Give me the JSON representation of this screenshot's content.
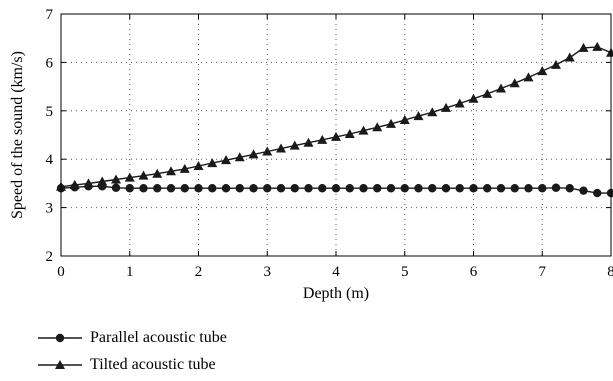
{
  "chart_data": {
    "type": "line",
    "xlabel": "Depth (m)",
    "ylabel": "Speed of the sound (km/s)",
    "xlim": [
      0,
      8
    ],
    "ylim": [
      2,
      7
    ],
    "xticks": [
      "0",
      "1",
      "2",
      "3",
      "4",
      "5",
      "6",
      "7",
      "8"
    ],
    "yticks": [
      "2",
      "3",
      "4",
      "5",
      "6",
      "7"
    ],
    "grid": "dotted",
    "legend_position": "bottom-left, below plot",
    "series": [
      {
        "name": "Parallel acoustic tube",
        "marker": "circle",
        "color": "#1a1a1a",
        "x": [
          0,
          0.2,
          0.4,
          0.6,
          0.8,
          1.0,
          1.2,
          1.4,
          1.6,
          1.8,
          2.0,
          2.2,
          2.4,
          2.6,
          2.8,
          3.0,
          3.2,
          3.4,
          3.6,
          3.8,
          4.0,
          4.2,
          4.4,
          4.6,
          4.8,
          5.0,
          5.2,
          5.4,
          5.6,
          5.8,
          6.0,
          6.2,
          6.4,
          6.6,
          6.8,
          7.0,
          7.2,
          7.4,
          7.6,
          7.8,
          8.0
        ],
        "y": [
          3.4,
          3.42,
          3.44,
          3.44,
          3.41,
          3.4,
          3.4,
          3.4,
          3.4,
          3.4,
          3.4,
          3.4,
          3.4,
          3.4,
          3.4,
          3.4,
          3.4,
          3.4,
          3.4,
          3.4,
          3.4,
          3.4,
          3.4,
          3.4,
          3.4,
          3.4,
          3.4,
          3.4,
          3.4,
          3.4,
          3.4,
          3.4,
          3.4,
          3.4,
          3.4,
          3.4,
          3.41,
          3.4,
          3.35,
          3.3,
          3.3
        ]
      },
      {
        "name": "Tilted acoustic tube",
        "marker": "triangle",
        "color": "#1a1a1a",
        "x": [
          0,
          0.2,
          0.4,
          0.6,
          0.8,
          1.0,
          1.2,
          1.4,
          1.6,
          1.8,
          2.0,
          2.2,
          2.4,
          2.6,
          2.8,
          3.0,
          3.2,
          3.4,
          3.6,
          3.8,
          4.0,
          4.2,
          4.4,
          4.6,
          4.8,
          5.0,
          5.2,
          5.4,
          5.6,
          5.8,
          6.0,
          6.2,
          6.4,
          6.6,
          6.8,
          7.0,
          7.2,
          7.4,
          7.6,
          7.8,
          8.0
        ],
        "y": [
          3.43,
          3.47,
          3.5,
          3.54,
          3.58,
          3.62,
          3.66,
          3.7,
          3.75,
          3.8,
          3.86,
          3.92,
          3.98,
          4.04,
          4.1,
          4.16,
          4.22,
          4.28,
          4.34,
          4.4,
          4.46,
          4.52,
          4.59,
          4.66,
          4.73,
          4.81,
          4.89,
          4.97,
          5.06,
          5.15,
          5.25,
          5.35,
          5.46,
          5.57,
          5.69,
          5.82,
          5.95,
          6.1,
          6.3,
          6.32,
          6.2
        ]
      }
    ]
  }
}
